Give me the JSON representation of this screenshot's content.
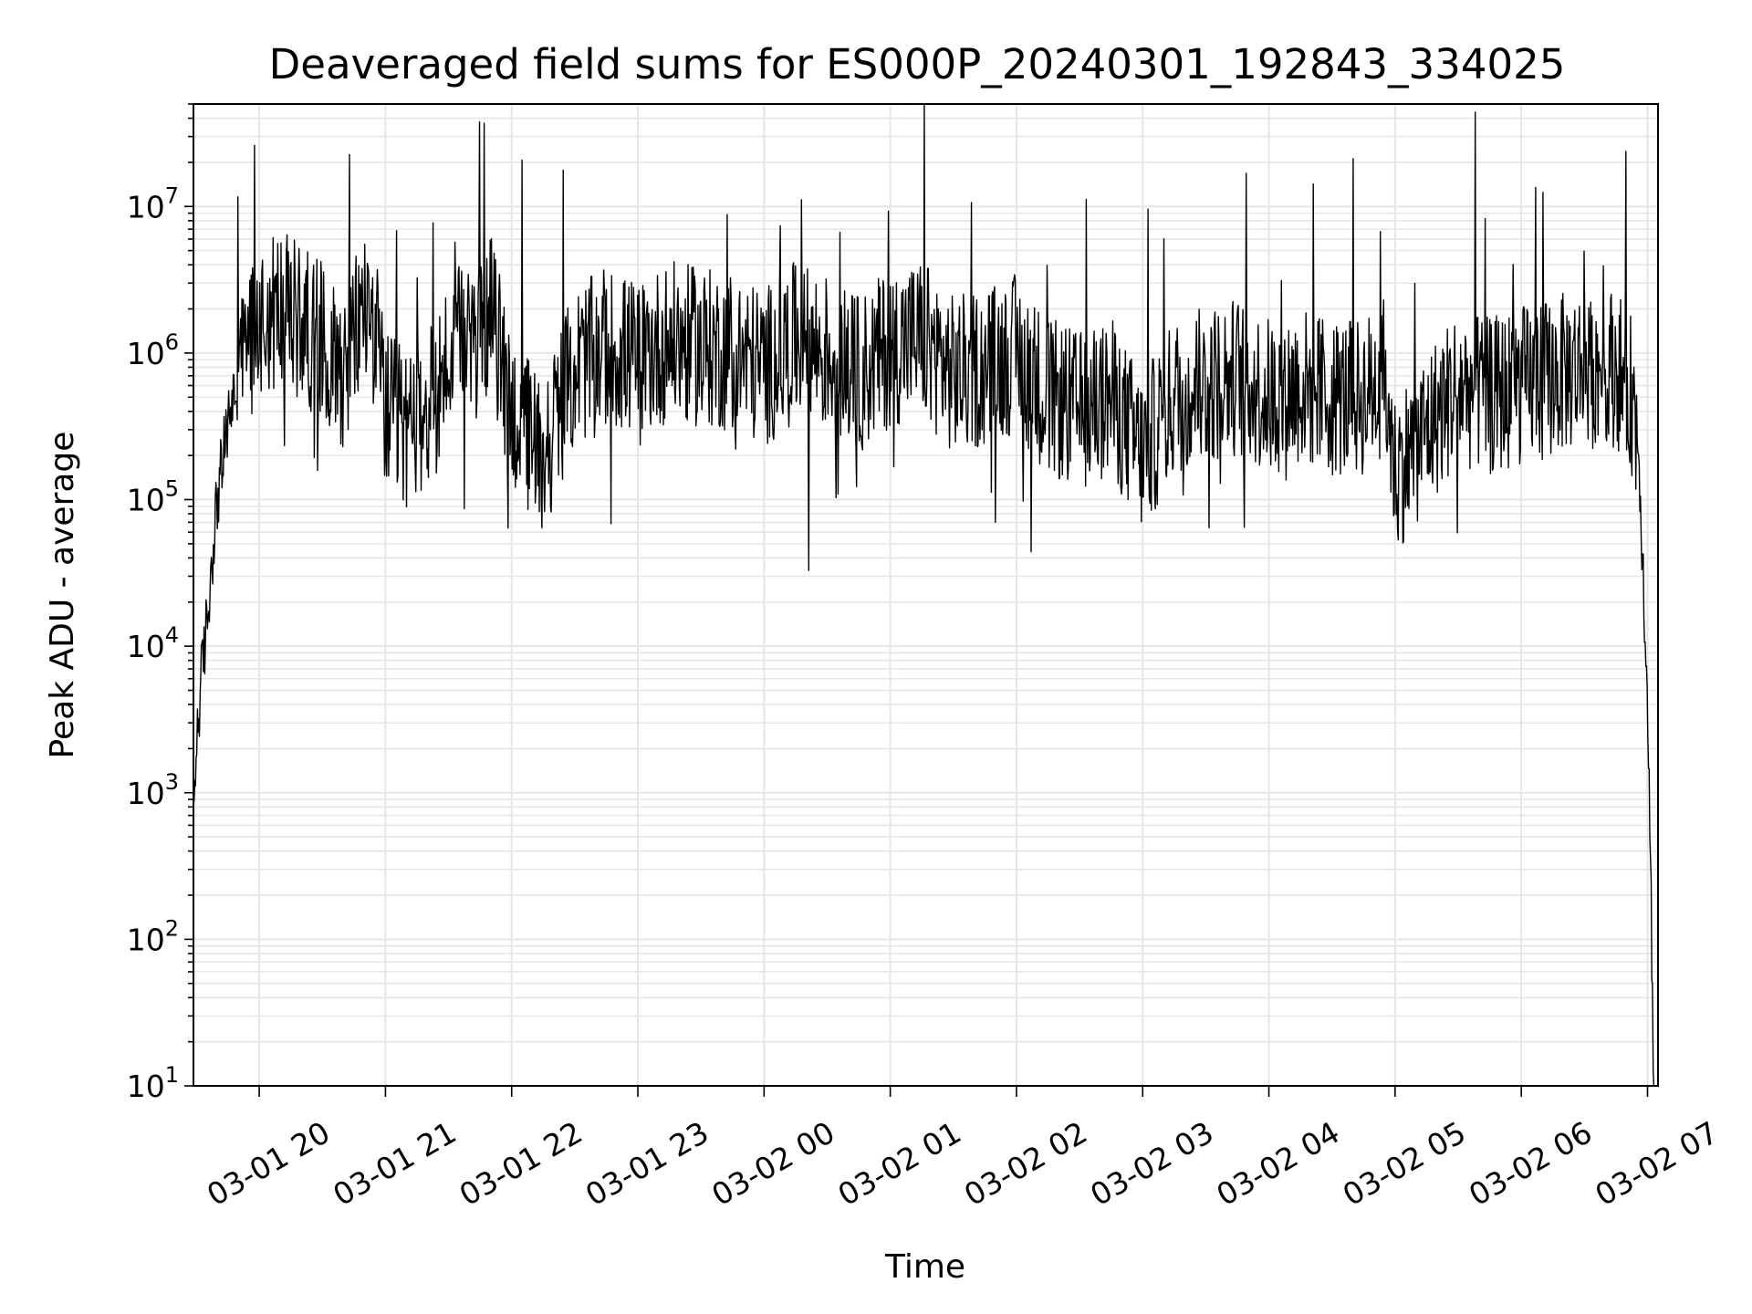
{
  "chart_data": {
    "type": "line",
    "title": "Deaveraged field sums for ES000P_20240301_192843_334025",
    "xlabel": "Time",
    "ylabel": "Peak ADU - average",
    "x_range": [
      "2024-03-01 19:28:43",
      "2024-03-02 07:05:00"
    ],
    "ylim": [
      10,
      50000000
    ],
    "y_scale": "log",
    "grid": true,
    "legend": "none",
    "line_color": "#000000",
    "grid_color": "#e6e6e6",
    "x_ticks": [
      {
        "value": "2024-03-01 20:00",
        "label": "03-01 20"
      },
      {
        "value": "2024-03-01 21:00",
        "label": "03-01 21"
      },
      {
        "value": "2024-03-01 22:00",
        "label": "03-01 22"
      },
      {
        "value": "2024-03-01 23:00",
        "label": "03-01 23"
      },
      {
        "value": "2024-03-02 00:00",
        "label": "03-02 00"
      },
      {
        "value": "2024-03-02 01:00",
        "label": "03-02 01"
      },
      {
        "value": "2024-03-02 02:00",
        "label": "03-02 02"
      },
      {
        "value": "2024-03-02 03:00",
        "label": "03-02 03"
      },
      {
        "value": "2024-03-02 04:00",
        "label": "03-02 04"
      },
      {
        "value": "2024-03-02 05:00",
        "label": "03-02 05"
      },
      {
        "value": "2024-03-02 06:00",
        "label": "03-02 06"
      },
      {
        "value": "2024-03-02 07:00",
        "label": "03-02 07"
      }
    ],
    "y_ticks": [
      {
        "value": 10,
        "base": "10",
        "exp": "1"
      },
      {
        "value": 100,
        "base": "10",
        "exp": "2"
      },
      {
        "value": 1000,
        "base": "10",
        "exp": "3"
      },
      {
        "value": 10000,
        "base": "10",
        "exp": "4"
      },
      {
        "value": 100000,
        "base": "10",
        "exp": "5"
      },
      {
        "value": 1000000,
        "base": "10",
        "exp": "6"
      },
      {
        "value": 10000000,
        "base": "10",
        "exp": "7"
      }
    ],
    "series": [
      {
        "x": [
          "2024-03-01 19:28:43",
          "2024-03-01 19:30",
          "2024-03-01 19:32",
          "2024-03-01 19:34",
          "2024-03-01 19:36",
          "2024-03-01 19:38",
          "2024-03-01 19:40",
          "2024-03-01 19:43",
          "2024-03-01 19:46",
          "2024-03-01 19:50",
          "2024-03-01 19:55",
          "2024-03-01 20:00",
          "2024-03-01 20:10",
          "2024-03-01 20:20",
          "2024-03-01 20:30",
          "2024-03-01 20:40",
          "2024-03-01 20:45",
          "2024-03-01 20:50",
          "2024-03-01 20:55",
          "2024-03-01 21:00",
          "2024-03-01 21:10",
          "2024-03-01 21:20",
          "2024-03-01 21:30",
          "2024-03-01 21:35",
          "2024-03-01 21:40",
          "2024-03-01 21:45",
          "2024-03-01 21:50",
          "2024-03-01 22:00",
          "2024-03-01 22:15",
          "2024-03-01 22:30",
          "2024-03-01 22:45",
          "2024-03-01 23:00",
          "2024-03-01 23:15",
          "2024-03-01 23:30",
          "2024-03-01 23:45",
          "2024-03-02 00:00",
          "2024-03-02 00:15",
          "2024-03-02 00:30",
          "2024-03-02 00:45",
          "2024-03-02 01:00",
          "2024-03-02 01:15",
          "2024-03-02 01:30",
          "2024-03-02 01:45",
          "2024-03-02 02:00",
          "2024-03-02 02:15",
          "2024-03-02 02:30",
          "2024-03-02 02:45",
          "2024-03-02 03:00",
          "2024-03-02 03:15",
          "2024-03-02 03:30",
          "2024-03-02 03:45",
          "2024-03-02 04:00",
          "2024-03-02 04:15",
          "2024-03-02 04:30",
          "2024-03-02 04:45",
          "2024-03-02 04:55",
          "2024-03-02 05:00",
          "2024-03-02 05:15",
          "2024-03-02 05:30",
          "2024-03-02 05:45",
          "2024-03-02 06:00",
          "2024-03-02 06:15",
          "2024-03-02 06:30",
          "2024-03-02 06:45",
          "2024-03-02 06:50",
          "2024-03-02 06:53",
          "2024-03-02 06:56",
          "2024-03-02 06:58",
          "2024-03-02 07:00",
          "2024-03-02 07:02",
          "2024-03-02 07:03"
        ],
        "values": [
          600,
          2000,
          5000,
          10000,
          20000,
          50000,
          100000,
          200000,
          400000,
          700000,
          1200000,
          1800000,
          2000000,
          1600000,
          1200000,
          800000,
          1200000,
          2200000,
          1500000,
          400000,
          300000,
          400000,
          900000,
          1100000,
          1000000,
          1300000,
          2000000,
          400000,
          200000,
          800000,
          1100000,
          900000,
          1200000,
          1100000,
          1000000,
          800000,
          1200000,
          1000000,
          700000,
          1100000,
          1300000,
          700000,
          800000,
          1000000,
          500000,
          400000,
          500000,
          200000,
          500000,
          600000,
          700000,
          500000,
          600000,
          500000,
          500000,
          700000,
          150000,
          300000,
          600000,
          500000,
          600000,
          700000,
          800000,
          800000,
          600000,
          500000,
          200000,
          30000,
          5000,
          100,
          10
        ]
      }
    ]
  }
}
